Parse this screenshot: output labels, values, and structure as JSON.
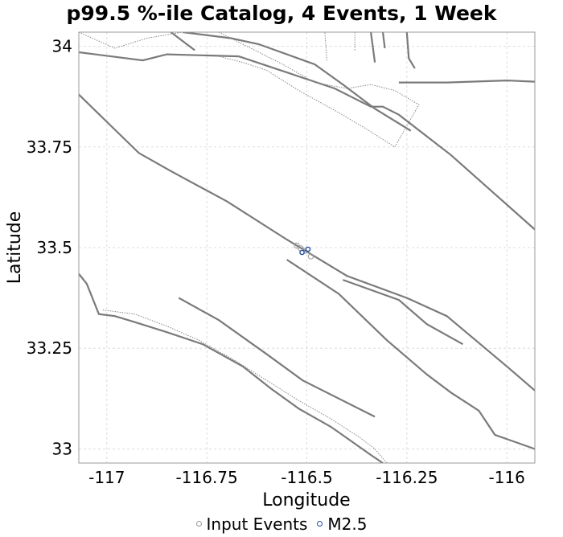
{
  "chart_data": {
    "type": "scatter",
    "title": "p99.5 %-ile Catalog, 4 Events, 1 Week",
    "xlabel": "Longitude",
    "ylabel": "Latitude",
    "xlim": [
      -117.07,
      -115.93
    ],
    "ylim": [
      32.965,
      34.035
    ],
    "x_ticks": [
      {
        "value": -117,
        "label": "-117"
      },
      {
        "value": -116.75,
        "label": "-116.75"
      },
      {
        "value": -116.5,
        "label": "-116.5"
      },
      {
        "value": -116.25,
        "label": "-116.25"
      },
      {
        "value": -116,
        "label": "-116"
      }
    ],
    "y_ticks": [
      {
        "value": 34,
        "label": "34"
      },
      {
        "value": 33.75,
        "label": "33.75"
      },
      {
        "value": 33.5,
        "label": "33.5"
      },
      {
        "value": 33.25,
        "label": "33.25"
      },
      {
        "value": 33,
        "label": "33"
      }
    ],
    "grid": true,
    "legend_position": "bottom",
    "series": [
      {
        "name": "Input Events",
        "color": "#999999",
        "points": [
          {
            "x": -116.525,
            "y": 33.505
          },
          {
            "x": -116.515,
            "y": 33.498
          },
          {
            "x": -116.505,
            "y": 33.492
          },
          {
            "x": -116.49,
            "y": 33.478
          }
        ]
      },
      {
        "name": "M2.5",
        "color": "#1f4e9e",
        "points": [
          {
            "x": -116.512,
            "y": 33.488
          },
          {
            "x": -116.497,
            "y": 33.496
          }
        ]
      }
    ],
    "faults": [
      {
        "style": "solid",
        "points": [
          [
            -117.07,
            33.985
          ],
          [
            -116.91,
            33.965
          ],
          [
            -116.85,
            33.98
          ],
          [
            -116.67,
            33.975
          ],
          [
            -116.55,
            33.935
          ],
          [
            -116.43,
            33.895
          ],
          [
            -116.38,
            33.87
          ],
          [
            -116.34,
            33.85
          ],
          [
            -116.31,
            33.85
          ],
          [
            -116.27,
            33.83
          ],
          [
            -116.14,
            33.73
          ],
          [
            -115.93,
            33.545
          ]
        ]
      },
      {
        "style": "solid",
        "points": [
          [
            -116.81,
            34.035
          ],
          [
            -116.69,
            34.02
          ],
          [
            -116.62,
            34.005
          ],
          [
            -116.48,
            33.955
          ],
          [
            -116.41,
            33.905
          ],
          [
            -116.33,
            33.845
          ],
          [
            -116.24,
            33.79
          ]
        ]
      },
      {
        "style": "solid",
        "points": [
          [
            -116.84,
            34.035
          ],
          [
            -116.78,
            33.99
          ]
        ]
      },
      {
        "style": "solid",
        "points": [
          [
            -116.27,
            33.91
          ],
          [
            -116.15,
            33.91
          ],
          [
            -116.0,
            33.915
          ],
          [
            -115.93,
            33.912
          ]
        ]
      },
      {
        "style": "solid",
        "points": [
          [
            -116.31,
            34.035
          ],
          [
            -116.305,
            33.995
          ]
        ]
      },
      {
        "style": "solid",
        "points": [
          [
            -116.34,
            34.035
          ],
          [
            -116.33,
            33.96
          ]
        ]
      },
      {
        "style": "solid",
        "points": [
          [
            -116.25,
            34.035
          ],
          [
            -116.245,
            33.97
          ],
          [
            -116.23,
            33.945
          ]
        ]
      },
      {
        "style": "solid",
        "points": [
          [
            -117.07,
            33.88
          ],
          [
            -116.92,
            33.735
          ],
          [
            -116.84,
            33.69
          ],
          [
            -116.7,
            33.615
          ],
          [
            -116.55,
            33.52
          ],
          [
            -116.4,
            33.43
          ],
          [
            -116.25,
            33.375
          ],
          [
            -116.15,
            33.33
          ],
          [
            -116.0,
            33.205
          ],
          [
            -115.93,
            33.145
          ]
        ]
      },
      {
        "style": "solid",
        "points": [
          [
            -116.55,
            33.47
          ],
          [
            -116.42,
            33.385
          ],
          [
            -116.3,
            33.27
          ],
          [
            -116.2,
            33.185
          ],
          [
            -116.14,
            33.14
          ],
          [
            -116.07,
            33.095
          ],
          [
            -116.03,
            33.035
          ],
          [
            -115.93,
            33.0
          ]
        ]
      },
      {
        "style": "solid",
        "points": [
          [
            -116.41,
            33.42
          ],
          [
            -116.27,
            33.37
          ],
          [
            -116.2,
            33.31
          ],
          [
            -116.11,
            33.26
          ]
        ]
      },
      {
        "style": "solid",
        "points": [
          [
            -116.82,
            33.375
          ],
          [
            -116.72,
            33.32
          ],
          [
            -116.6,
            33.235
          ],
          [
            -116.51,
            33.17
          ],
          [
            -116.33,
            33.08
          ]
        ]
      },
      {
        "style": "solid",
        "points": [
          [
            -117.07,
            33.435
          ],
          [
            -117.05,
            33.41
          ],
          [
            -117.03,
            33.36
          ],
          [
            -117.02,
            33.335
          ],
          [
            -116.98,
            33.33
          ],
          [
            -116.93,
            33.315
          ],
          [
            -116.85,
            33.29
          ],
          [
            -116.76,
            33.26
          ],
          [
            -116.66,
            33.205
          ],
          [
            -116.59,
            33.15
          ],
          [
            -116.52,
            33.1
          ],
          [
            -116.44,
            33.055
          ],
          [
            -116.39,
            33.02
          ],
          [
            -116.34,
            32.985
          ],
          [
            -116.31,
            32.965
          ]
        ]
      },
      {
        "style": "dotted",
        "points": [
          [
            -117.01,
            33.345
          ],
          [
            -116.93,
            33.335
          ],
          [
            -116.85,
            33.305
          ],
          [
            -116.77,
            33.27
          ],
          [
            -116.68,
            33.22
          ],
          [
            -116.6,
            33.17
          ],
          [
            -116.52,
            33.12
          ],
          [
            -116.44,
            33.075
          ],
          [
            -116.37,
            33.03
          ],
          [
            -116.33,
            33.0
          ],
          [
            -116.3,
            32.965
          ]
        ]
      },
      {
        "style": "dotted",
        "points": [
          [
            -117.07,
            34.035
          ],
          [
            -116.98,
            33.995
          ],
          [
            -116.9,
            34.02
          ],
          [
            -116.81,
            34.035
          ]
        ]
      },
      {
        "style": "dotted",
        "points": [
          [
            -116.72,
            34.035
          ],
          [
            -116.64,
            33.995
          ],
          [
            -116.56,
            33.955
          ],
          [
            -116.48,
            33.91
          ],
          [
            -116.4,
            33.895
          ],
          [
            -116.34,
            33.905
          ],
          [
            -116.28,
            33.89
          ],
          [
            -116.22,
            33.855
          ],
          [
            -116.28,
            33.75
          ],
          [
            -116.36,
            33.8
          ],
          [
            -116.42,
            33.835
          ],
          [
            -116.52,
            33.89
          ],
          [
            -116.6,
            33.94
          ],
          [
            -116.66,
            33.96
          ],
          [
            -116.72,
            33.975
          ]
        ]
      },
      {
        "style": "dotted",
        "points": [
          [
            -116.38,
            33.99
          ],
          [
            -116.38,
            34.035
          ]
        ]
      },
      {
        "style": "dotted",
        "points": [
          [
            -116.45,
            33.965
          ],
          [
            -116.455,
            34.035
          ]
        ]
      }
    ]
  }
}
